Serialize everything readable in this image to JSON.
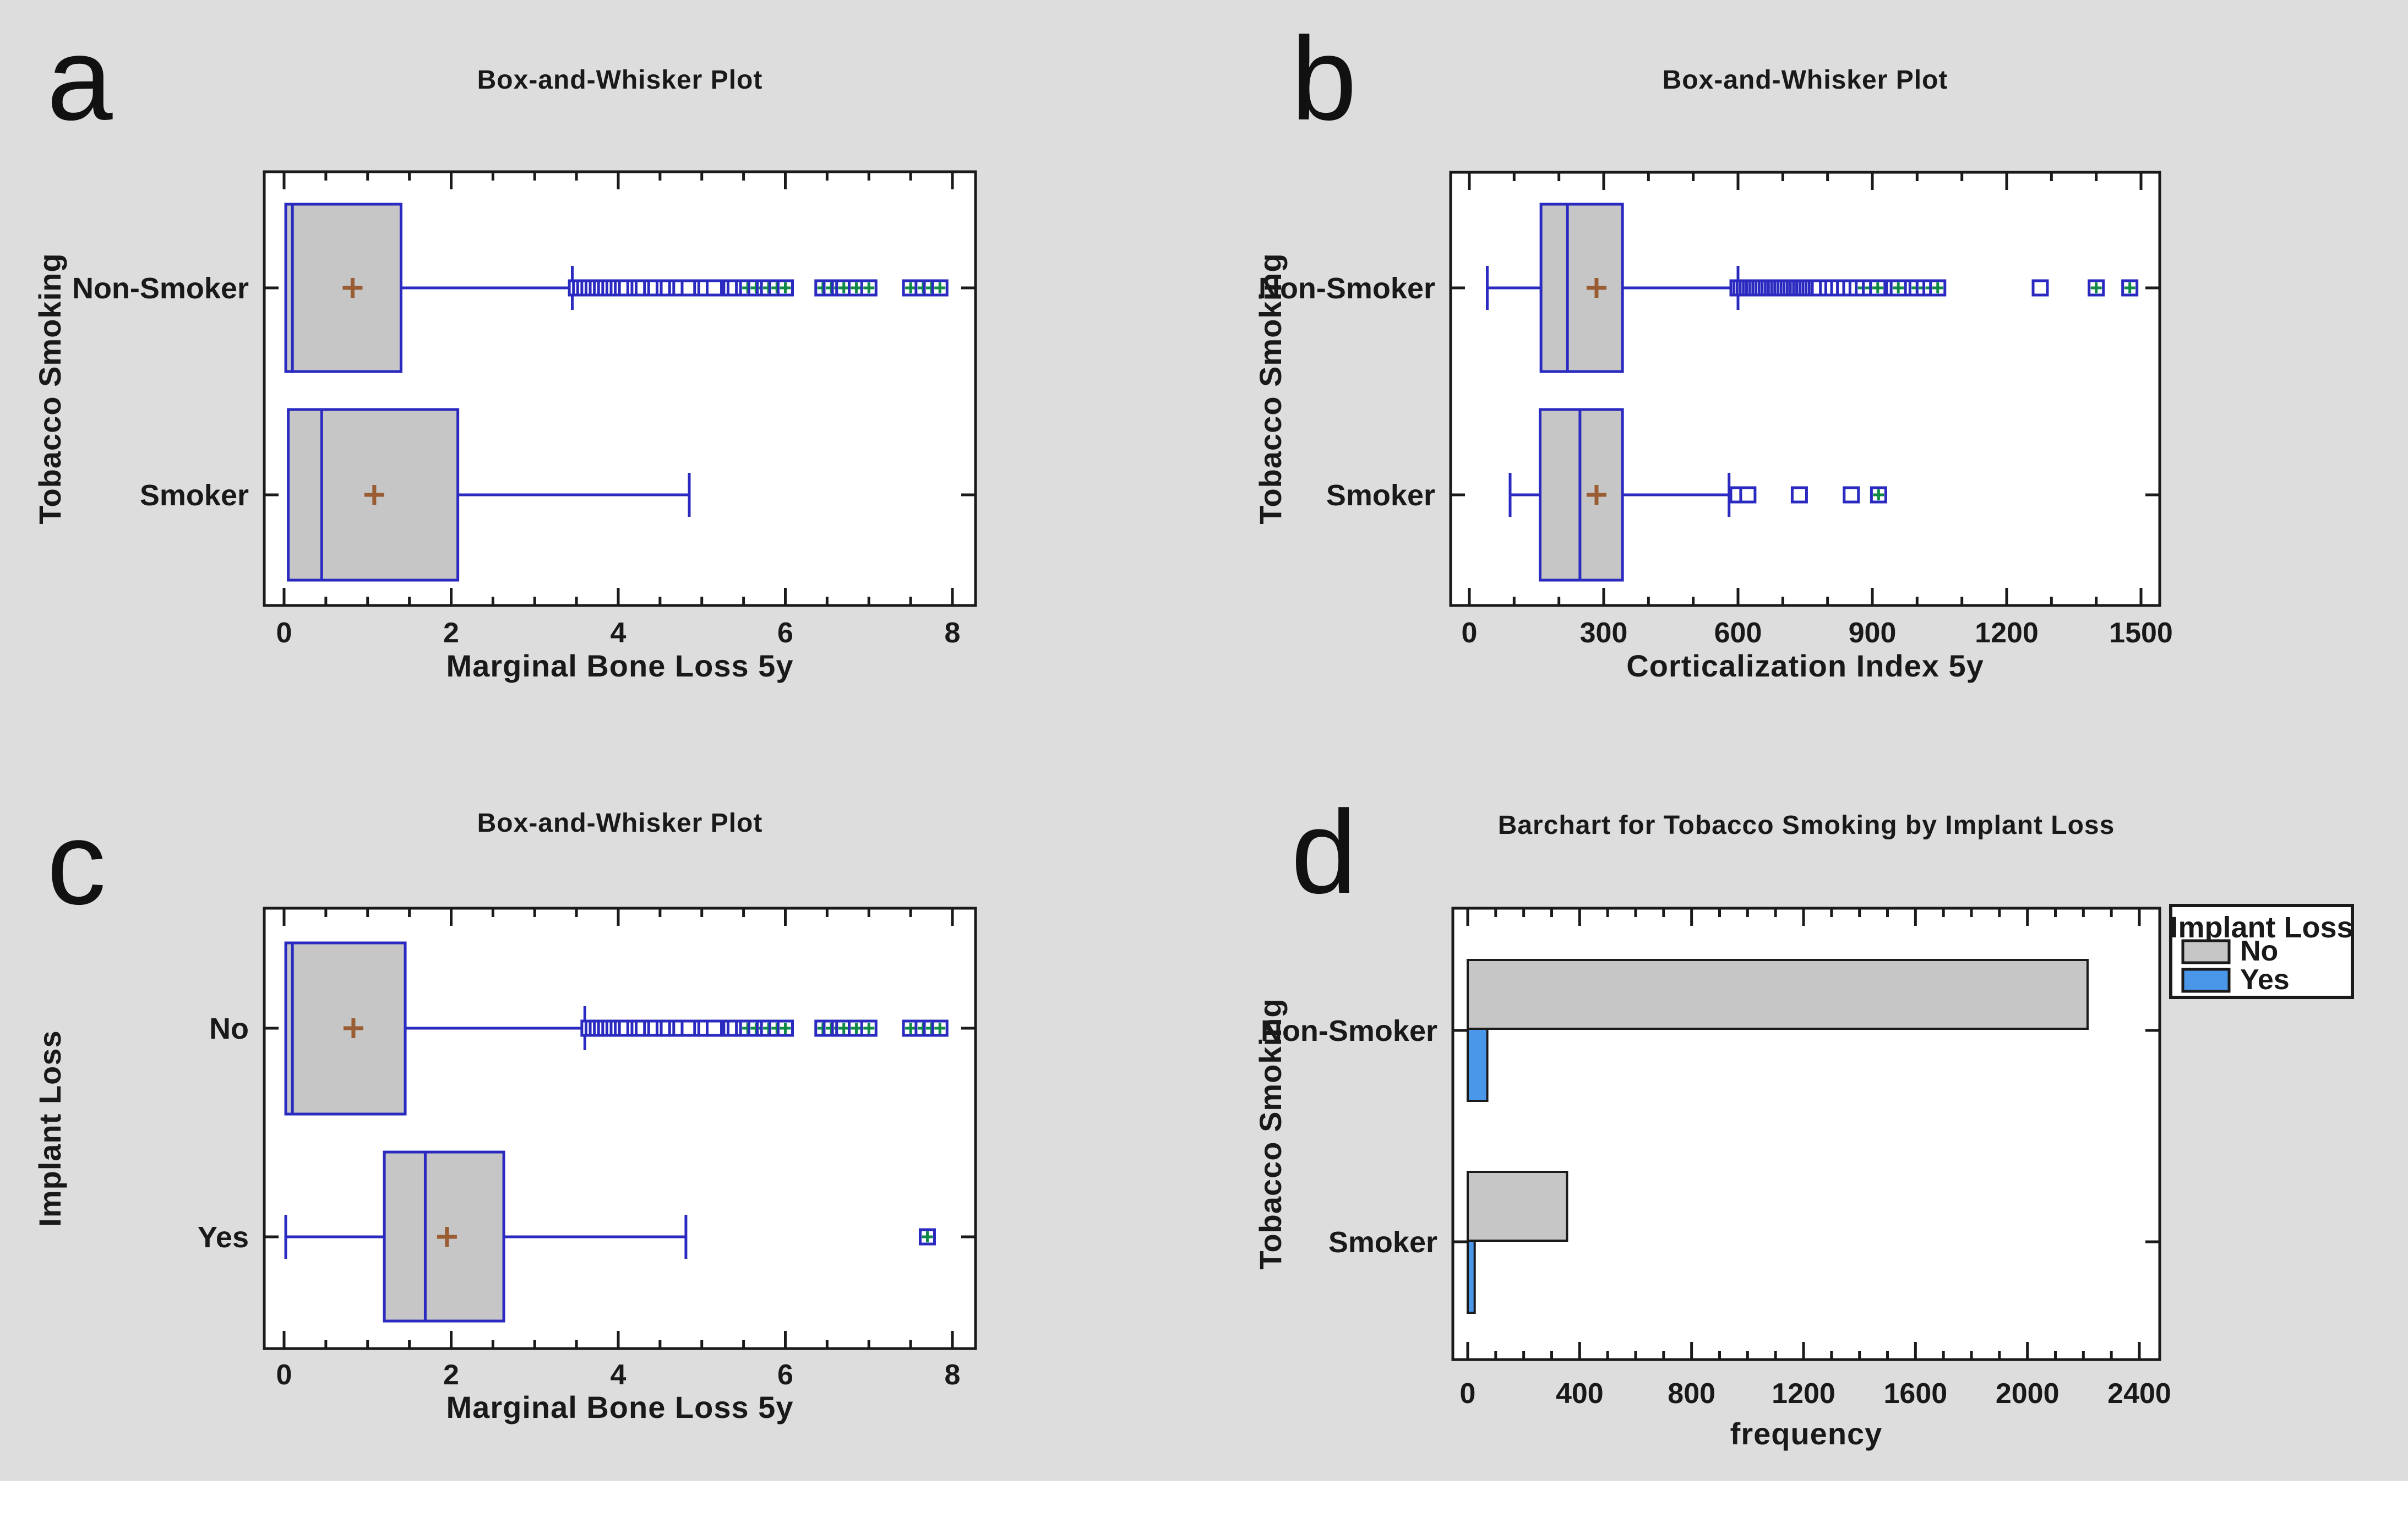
{
  "figure": {
    "background": "#dddddd",
    "bottom_strip": "#ffffff"
  },
  "colors": {
    "plot_bg": "#ffffff",
    "border": "#1a1a1a",
    "text": "#191919",
    "box_fill": "#c6c6c6",
    "box_stroke": "#2a2ac0",
    "bar_no": "#c6c6c6",
    "bar_yes": "#4a96e8",
    "mean_cross": "#9a5c32",
    "far_outlier_cross": "#0f8a46"
  },
  "chart_data": [
    {
      "panel_letter": "a",
      "type": "boxplot",
      "title": "Box-and-Whisker Plot",
      "xlabel": "Marginal Bone Loss 5y",
      "ylabel": "Tobacco Smoking",
      "xlim": [
        0,
        8
      ],
      "xticks": [
        0,
        2,
        4,
        6,
        8
      ],
      "minor_step": 0.5,
      "categories": [
        "Non-Smoker",
        "Smoker"
      ],
      "boxes": [
        {
          "category": "Non-Smoker",
          "min": 0.02,
          "q1": 0.02,
          "median": 0.1,
          "q3": 1.4,
          "max": 3.45,
          "mean": 0.82,
          "outliers": [
            3.5,
            3.55,
            3.6,
            3.65,
            3.7,
            3.75,
            3.8,
            3.85,
            3.9,
            3.95,
            4.0,
            4.05,
            4.1,
            4.2,
            4.25,
            4.3,
            4.4,
            4.45,
            4.55,
            4.6,
            4.7,
            4.75,
            4.85,
            5.0,
            5.05,
            5.15,
            5.35,
            5.4,
            5.5
          ],
          "far_outliers": [
            5.55,
            5.65,
            5.75,
            5.8,
            5.9,
            6.0,
            6.45,
            6.55,
            6.65,
            6.7,
            6.85,
            7.0,
            7.5,
            7.65,
            7.75,
            7.85
          ]
        },
        {
          "category": "Smoker",
          "min": 0.05,
          "q1": 0.05,
          "median": 0.45,
          "q3": 2.08,
          "max": 4.85,
          "mean": 1.08,
          "outliers": [],
          "far_outliers": []
        }
      ]
    },
    {
      "panel_letter": "b",
      "type": "boxplot",
      "title": "Box-and-Whisker Plot",
      "xlabel": "Corticalization Index 5y",
      "ylabel": "Tobacco Smoking",
      "xlim": [
        0,
        1500
      ],
      "xticks": [
        0,
        300,
        600,
        900,
        1200,
        1500
      ],
      "minor_step": 100,
      "categories": [
        "Non-Smoker",
        "Smoker"
      ],
      "boxes": [
        {
          "category": "Non-Smoker",
          "min": 40,
          "q1": 160,
          "median": 219,
          "q3": 342,
          "max": 600,
          "mean": 284,
          "outliers": [
            600,
            607,
            614,
            621,
            628,
            635,
            642,
            649,
            656,
            663,
            670,
            677,
            684,
            691,
            698,
            705,
            712,
            719,
            726,
            733,
            740,
            747,
            754,
            761,
            768,
            775,
            782,
            800,
            812,
            825,
            838,
            852,
            866,
            930,
            948,
            976,
            1275
          ],
          "far_outliers": [
            880,
            896,
            912,
            958,
            1000,
            1016,
            1031,
            1046,
            1400,
            1475
          ]
        },
        {
          "category": "Smoker",
          "min": 91,
          "q1": 158,
          "median": 247,
          "q3": 342,
          "max": 580,
          "mean": 284,
          "outliers": [
            600,
            622,
            737,
            853
          ],
          "far_outliers": [
            914
          ]
        }
      ]
    },
    {
      "panel_letter": "c",
      "type": "boxplot",
      "title": "Box-and-Whisker Plot",
      "xlabel": "Marginal Bone Loss 5y",
      "ylabel": "Implant Loss",
      "xlim": [
        0,
        8
      ],
      "xticks": [
        0,
        2,
        4,
        6,
        8
      ],
      "minor_step": 0.5,
      "categories": [
        "No",
        "Yes"
      ],
      "boxes": [
        {
          "category": "No",
          "min": 0.02,
          "q1": 0.02,
          "median": 0.1,
          "q3": 1.45,
          "max": 3.6,
          "mean": 0.83,
          "outliers": [
            3.65,
            3.7,
            3.75,
            3.8,
            3.85,
            3.9,
            3.95,
            4.0,
            4.05,
            4.1,
            4.2,
            4.25,
            4.3,
            4.4,
            4.45,
            4.55,
            4.6,
            4.7,
            4.75,
            4.85,
            5.0,
            5.05,
            5.15,
            5.35,
            5.4,
            5.5
          ],
          "far_outliers": [
            5.55,
            5.65,
            5.75,
            5.8,
            5.9,
            6.0,
            6.45,
            6.55,
            6.65,
            6.7,
            6.85,
            7.0,
            7.5,
            7.65,
            7.75,
            7.85
          ]
        },
        {
          "category": "Yes",
          "min": 0.02,
          "q1": 1.2,
          "median": 1.69,
          "q3": 2.63,
          "max": 4.81,
          "mean": 1.95,
          "outliers": [],
          "far_outliers": [
            7.7
          ]
        }
      ]
    },
    {
      "panel_letter": "d",
      "type": "bar",
      "title": "Barchart for Tobacco Smoking by Implant Loss",
      "xlabel": "frequency",
      "ylabel": "Tobacco Smoking",
      "xlim": [
        0,
        2400
      ],
      "xticks": [
        0,
        400,
        800,
        1200,
        1600,
        2000,
        2400
      ],
      "minor_step": 100,
      "categories": [
        "Non-Smoker",
        "Smoker"
      ],
      "legend_title": "Implant Loss",
      "series": [
        {
          "name": "No",
          "color_key": "bar_no",
          "values": [
            2215,
            355
          ]
        },
        {
          "name": "Yes",
          "color_key": "bar_yes",
          "values": [
            70,
            25
          ]
        }
      ]
    }
  ]
}
